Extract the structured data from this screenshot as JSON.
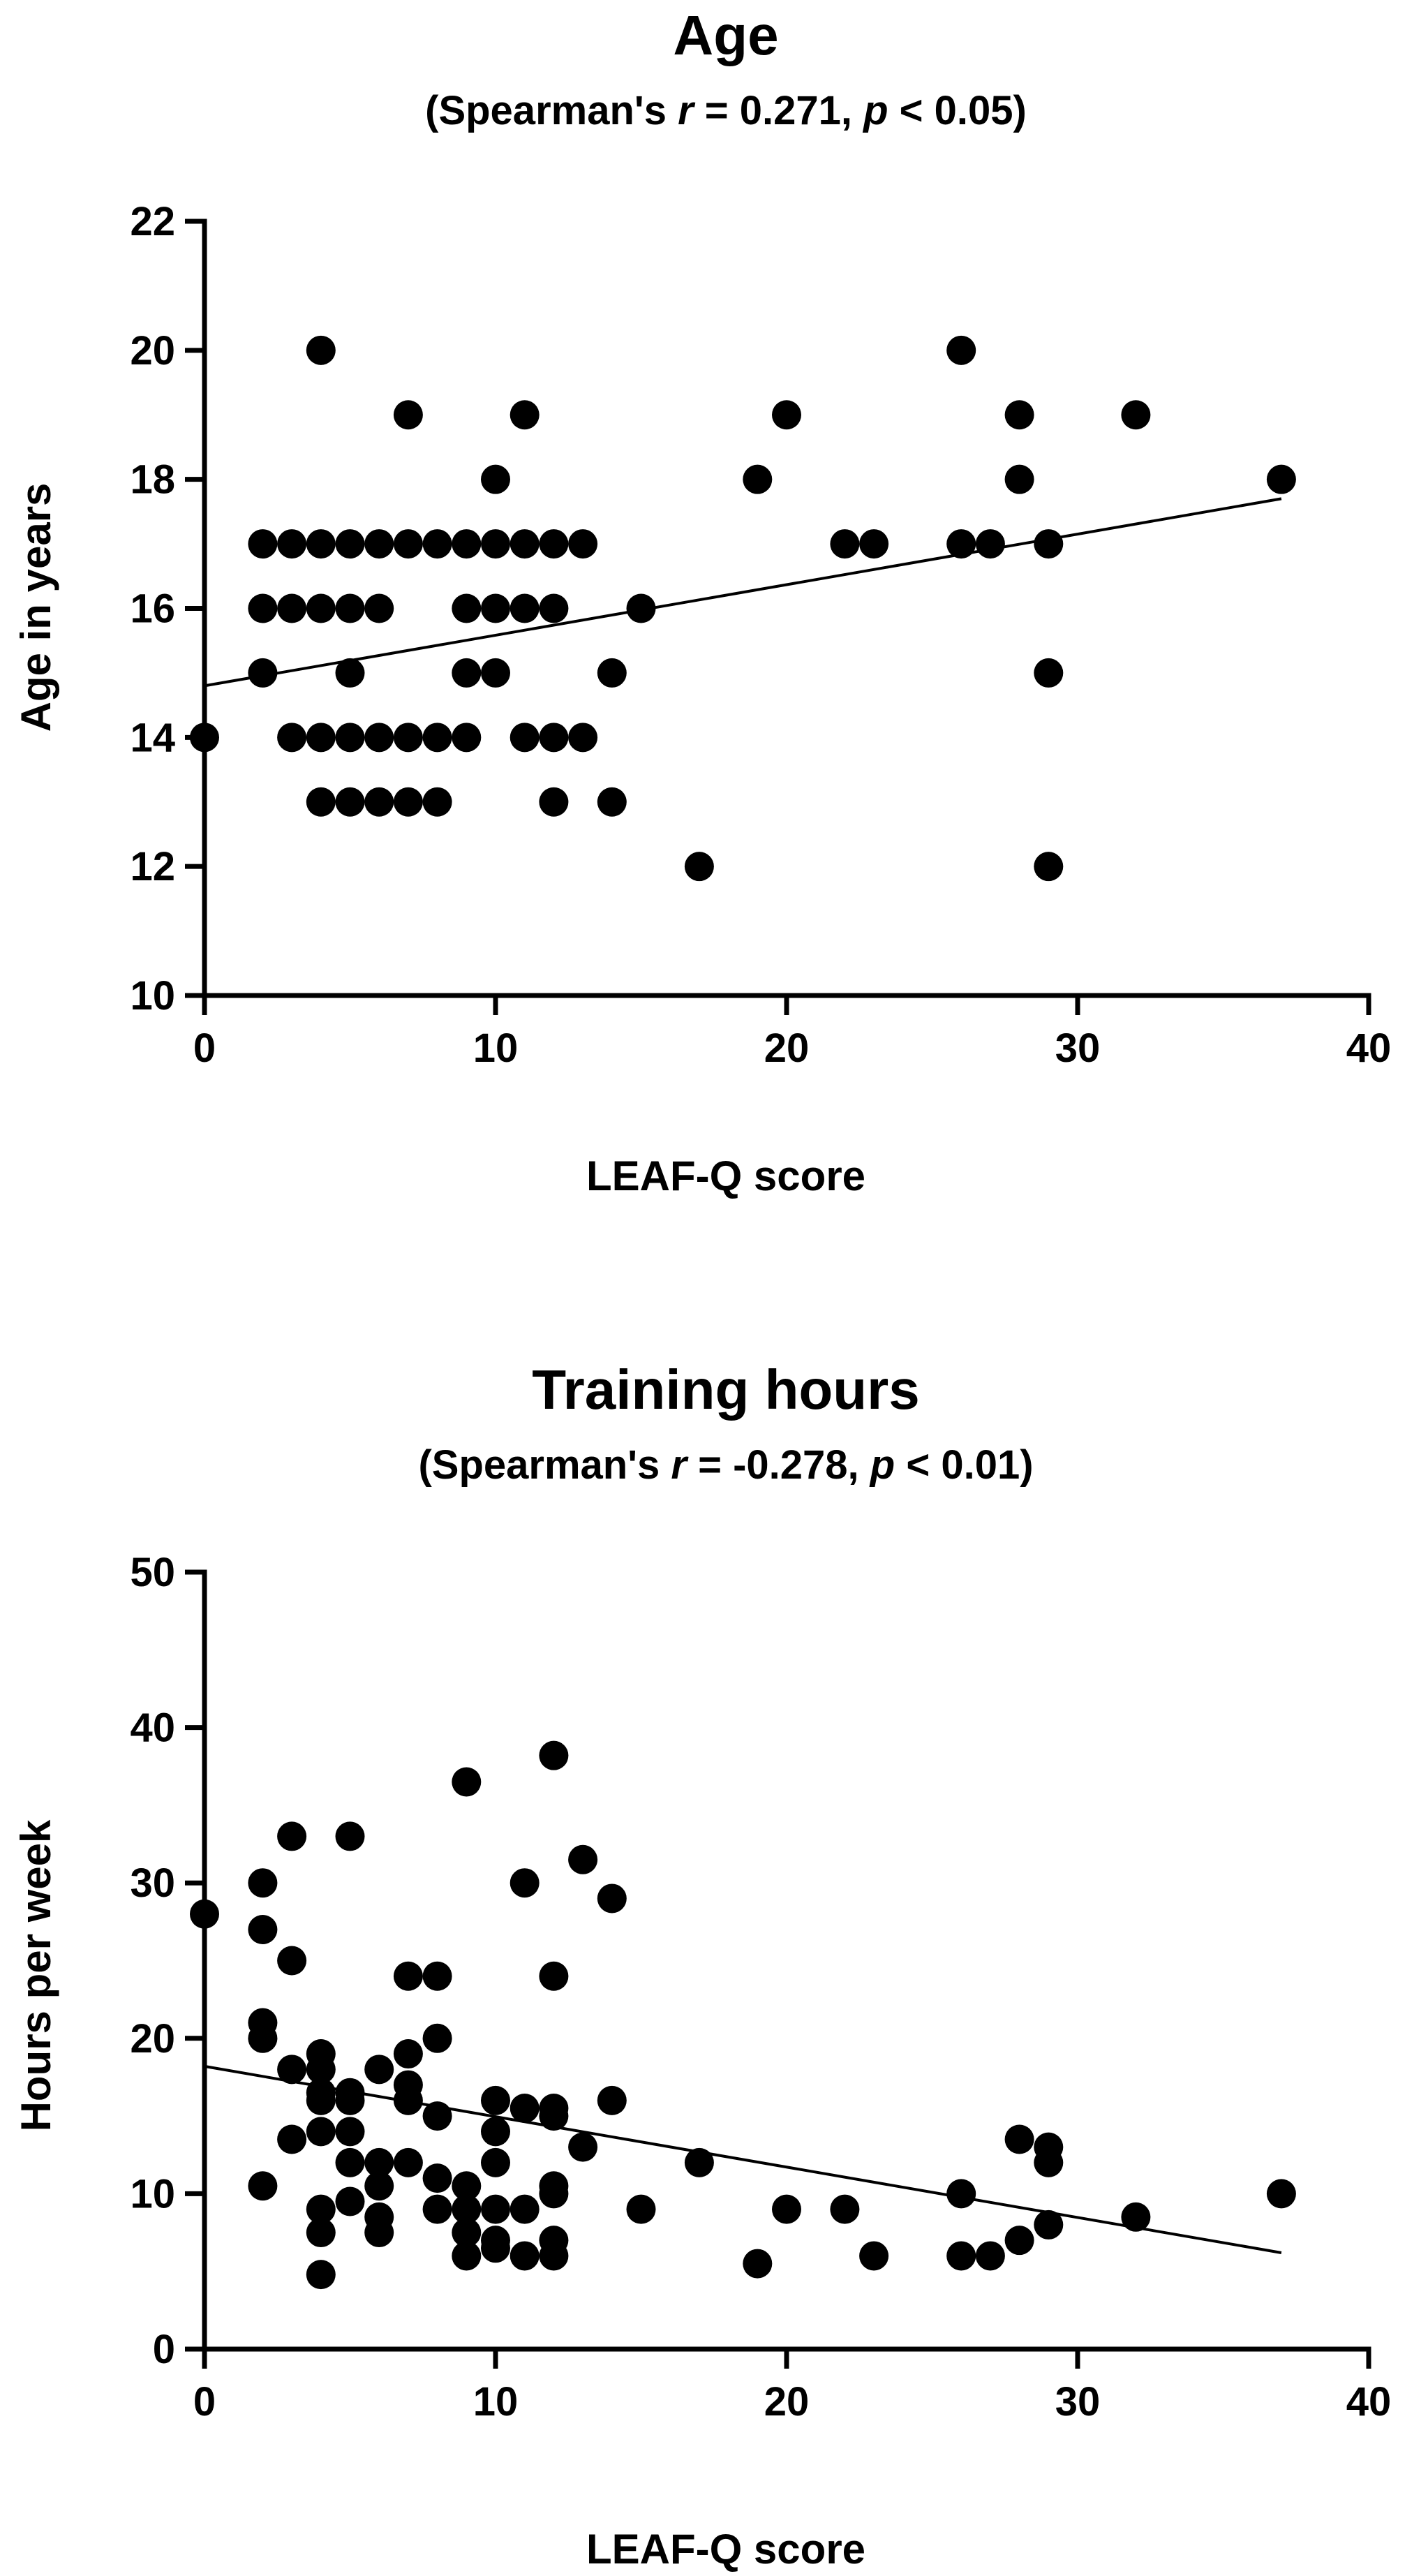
{
  "chart_data": [
    {
      "type": "scatter",
      "title": "Age",
      "subtitle": {
        "open": "(Spearman's ",
        "r_symbol": "r",
        "middle": " = 0.271, ",
        "p_symbol": "p",
        "close": " < 0.05)"
      },
      "xlabel": "LEAF-Q score",
      "ylabel": "Age in years",
      "xlim": [
        0,
        40
      ],
      "ylim": [
        10,
        22
      ],
      "xticks": [
        0,
        10,
        20,
        30,
        40
      ],
      "yticks": [
        10,
        12,
        14,
        16,
        18,
        20,
        22
      ],
      "grid": false,
      "points": [
        [
          0,
          14
        ],
        [
          2,
          17
        ],
        [
          2,
          16
        ],
        [
          2,
          15
        ],
        [
          3,
          17
        ],
        [
          3,
          16
        ],
        [
          3,
          14
        ],
        [
          4,
          20
        ],
        [
          4,
          17
        ],
        [
          4,
          16
        ],
        [
          4,
          14
        ],
        [
          4,
          13
        ],
        [
          5,
          17
        ],
        [
          5,
          16
        ],
        [
          5,
          15
        ],
        [
          5,
          14
        ],
        [
          5,
          13
        ],
        [
          6,
          17
        ],
        [
          6,
          16
        ],
        [
          6,
          14
        ],
        [
          6,
          13
        ],
        [
          7,
          19
        ],
        [
          7,
          17
        ],
        [
          7,
          14
        ],
        [
          7,
          13
        ],
        [
          8,
          17
        ],
        [
          8,
          14
        ],
        [
          8,
          13
        ],
        [
          9,
          17
        ],
        [
          9,
          16
        ],
        [
          9,
          15
        ],
        [
          9,
          14
        ],
        [
          10,
          18
        ],
        [
          10,
          17
        ],
        [
          10,
          16
        ],
        [
          10,
          15
        ],
        [
          11,
          19
        ],
        [
          11,
          17
        ],
        [
          11,
          16
        ],
        [
          11,
          14
        ],
        [
          12,
          17
        ],
        [
          12,
          16
        ],
        [
          12,
          14
        ],
        [
          12,
          13
        ],
        [
          13,
          17
        ],
        [
          13,
          14
        ],
        [
          14,
          15
        ],
        [
          14,
          13
        ],
        [
          15,
          16
        ],
        [
          17,
          12
        ],
        [
          19,
          18
        ],
        [
          20,
          19
        ],
        [
          22,
          17
        ],
        [
          23,
          17
        ],
        [
          26,
          20
        ],
        [
          26,
          17
        ],
        [
          27,
          17
        ],
        [
          28,
          19
        ],
        [
          28,
          18
        ],
        [
          29,
          17
        ],
        [
          29,
          15
        ],
        [
          29,
          12
        ],
        [
          32,
          19
        ],
        [
          37,
          18
        ]
      ],
      "trendline": {
        "x": [
          0,
          37
        ],
        "y": [
          14.8,
          17.7
        ]
      }
    },
    {
      "type": "scatter",
      "title": "Training hours",
      "subtitle": {
        "open": "(Spearman's ",
        "r_symbol": "r",
        "middle": " = -0.278, ",
        "p_symbol": "p",
        "close": " < 0.01)"
      },
      "xlabel": "LEAF-Q score",
      "ylabel": "Hours per week",
      "xlim": [
        0,
        40
      ],
      "ylim": [
        0,
        50
      ],
      "xticks": [
        0,
        10,
        20,
        30,
        40
      ],
      "yticks": [
        0,
        10,
        20,
        30,
        40,
        50
      ],
      "grid": false,
      "points": [
        [
          0,
          28
        ],
        [
          2,
          30
        ],
        [
          2,
          27
        ],
        [
          2,
          21
        ],
        [
          2,
          20
        ],
        [
          2,
          10.5
        ],
        [
          3,
          33
        ],
        [
          3,
          25
        ],
        [
          3,
          18
        ],
        [
          3,
          13.5
        ],
        [
          4,
          19
        ],
        [
          4,
          18
        ],
        [
          4,
          16.5
        ],
        [
          4,
          16
        ],
        [
          4,
          14
        ],
        [
          4,
          9
        ],
        [
          4,
          7.5
        ],
        [
          4,
          4.8
        ],
        [
          5,
          33
        ],
        [
          5,
          16.5
        ],
        [
          5,
          16
        ],
        [
          5,
          14
        ],
        [
          5,
          12
        ],
        [
          5,
          9.5
        ],
        [
          6,
          18
        ],
        [
          6,
          12
        ],
        [
          6,
          10.5
        ],
        [
          6,
          8.5
        ],
        [
          6,
          7.5
        ],
        [
          7,
          24
        ],
        [
          7,
          19
        ],
        [
          7,
          17
        ],
        [
          7,
          16
        ],
        [
          7,
          12
        ],
        [
          8,
          24
        ],
        [
          8,
          20
        ],
        [
          8,
          15
        ],
        [
          8,
          11
        ],
        [
          8,
          9
        ],
        [
          9,
          36.5
        ],
        [
          9,
          10.5
        ],
        [
          9,
          9
        ],
        [
          9,
          7.5
        ],
        [
          9,
          6
        ],
        [
          10,
          16
        ],
        [
          10,
          14
        ],
        [
          10,
          12
        ],
        [
          10,
          9
        ],
        [
          10,
          7
        ],
        [
          10,
          6.5
        ],
        [
          11,
          30
        ],
        [
          11,
          15.5
        ],
        [
          11,
          9
        ],
        [
          11,
          6
        ],
        [
          12,
          38.2
        ],
        [
          12,
          24
        ],
        [
          12,
          15.5
        ],
        [
          12,
          15
        ],
        [
          12,
          10.5
        ],
        [
          12,
          10
        ],
        [
          12,
          7
        ],
        [
          12,
          6
        ],
        [
          13,
          31.5
        ],
        [
          13,
          13
        ],
        [
          14,
          29
        ],
        [
          14,
          16
        ],
        [
          15,
          9
        ],
        [
          17,
          12
        ],
        [
          19,
          5.5
        ],
        [
          20,
          9
        ],
        [
          22,
          9
        ],
        [
          23,
          6
        ],
        [
          26,
          10
        ],
        [
          26,
          6
        ],
        [
          27,
          6
        ],
        [
          28,
          13.5
        ],
        [
          28,
          7
        ],
        [
          29,
          13
        ],
        [
          29,
          12
        ],
        [
          29,
          8
        ],
        [
          32,
          8.5
        ],
        [
          37,
          10
        ]
      ],
      "trendline": {
        "x": [
          0,
          37
        ],
        "y": [
          18.2,
          6.2
        ]
      }
    }
  ]
}
